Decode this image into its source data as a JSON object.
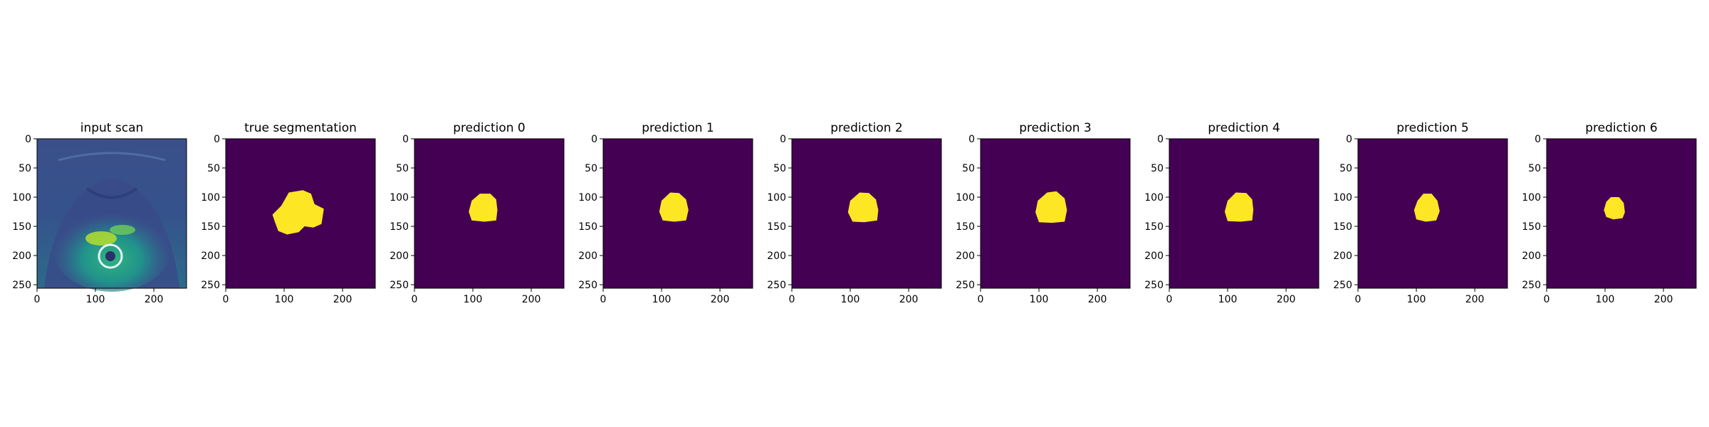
{
  "figure": {
    "colors": {
      "background": "#440154",
      "foreground": "#fde725"
    }
  },
  "chart_data": [
    {
      "type": "heatmap",
      "title": "input scan",
      "image": "mri-scan",
      "xticks": [
        0,
        100,
        200
      ],
      "yticks": [
        0,
        50,
        100,
        150,
        200,
        250
      ],
      "xlim": [
        0,
        256
      ],
      "ylim": [
        256,
        0
      ]
    },
    {
      "type": "heatmap",
      "title": "true segmentation",
      "image": "mask",
      "xticks": [
        0,
        100,
        200
      ],
      "yticks": [
        0,
        50,
        100,
        150,
        200,
        250
      ],
      "xlim": [
        0,
        256
      ],
      "ylim": [
        256,
        0
      ],
      "mask_outline": [
        [
          108,
          92
        ],
        [
          132,
          88
        ],
        [
          146,
          94
        ],
        [
          152,
          112
        ],
        [
          168,
          120
        ],
        [
          164,
          146
        ],
        [
          150,
          152
        ],
        [
          135,
          150
        ],
        [
          125,
          160
        ],
        [
          105,
          164
        ],
        [
          90,
          158
        ],
        [
          84,
          142
        ],
        [
          80,
          130
        ],
        [
          95,
          115
        ]
      ]
    },
    {
      "type": "heatmap",
      "title": "prediction 0",
      "image": "mask",
      "xticks": [
        0,
        100,
        200
      ],
      "yticks": [
        0,
        50,
        100,
        150,
        200,
        250
      ],
      "xlim": [
        0,
        256
      ],
      "ylim": [
        256,
        0
      ],
      "mask_outline": [
        [
          112,
          94
        ],
        [
          130,
          94
        ],
        [
          140,
          104
        ],
        [
          142,
          122
        ],
        [
          140,
          140
        ],
        [
          120,
          142
        ],
        [
          98,
          140
        ],
        [
          93,
          125
        ],
        [
          98,
          106
        ]
      ]
    },
    {
      "type": "heatmap",
      "title": "prediction 1",
      "image": "mask",
      "xticks": [
        0,
        100,
        200
      ],
      "yticks": [
        0,
        50,
        100,
        150,
        200,
        250
      ],
      "xlim": [
        0,
        256
      ],
      "ylim": [
        256,
        0
      ],
      "mask_outline": [
        [
          115,
          92
        ],
        [
          130,
          93
        ],
        [
          142,
          104
        ],
        [
          146,
          122
        ],
        [
          142,
          140
        ],
        [
          122,
          142
        ],
        [
          102,
          140
        ],
        [
          96,
          125
        ],
        [
          100,
          106
        ]
      ]
    },
    {
      "type": "heatmap",
      "title": "prediction 2",
      "image": "mask",
      "xticks": [
        0,
        100,
        200
      ],
      "yticks": [
        0,
        50,
        100,
        150,
        200,
        250
      ],
      "xlim": [
        0,
        256
      ],
      "ylim": [
        256,
        0
      ],
      "mask_outline": [
        [
          116,
          92
        ],
        [
          132,
          93
        ],
        [
          144,
          104
        ],
        [
          148,
          122
        ],
        [
          146,
          140
        ],
        [
          124,
          143
        ],
        [
          104,
          142
        ],
        [
          96,
          126
        ],
        [
          100,
          106
        ]
      ]
    },
    {
      "type": "heatmap",
      "title": "prediction 3",
      "image": "mask",
      "xticks": [
        0,
        100,
        200
      ],
      "yticks": [
        0,
        50,
        100,
        150,
        200,
        250
      ],
      "xlim": [
        0,
        256
      ],
      "ylim": [
        256,
        0
      ],
      "mask_outline": [
        [
          114,
          92
        ],
        [
          130,
          90
        ],
        [
          144,
          102
        ],
        [
          148,
          122
        ],
        [
          144,
          142
        ],
        [
          122,
          144
        ],
        [
          100,
          143
        ],
        [
          94,
          126
        ],
        [
          98,
          106
        ]
      ]
    },
    {
      "type": "heatmap",
      "title": "prediction 4",
      "image": "mask",
      "xticks": [
        0,
        100,
        200
      ],
      "yticks": [
        0,
        50,
        100,
        150,
        200,
        250
      ],
      "xlim": [
        0,
        256
      ],
      "ylim": [
        256,
        0
      ],
      "mask_outline": [
        [
          114,
          92
        ],
        [
          132,
          93
        ],
        [
          142,
          104
        ],
        [
          144,
          122
        ],
        [
          142,
          140
        ],
        [
          122,
          142
        ],
        [
          100,
          141
        ],
        [
          95,
          125
        ],
        [
          100,
          106
        ]
      ]
    },
    {
      "type": "heatmap",
      "title": "prediction 5",
      "image": "mask",
      "xticks": [
        0,
        100,
        200
      ],
      "yticks": [
        0,
        50,
        100,
        150,
        200,
        250
      ],
      "xlim": [
        0,
        256
      ],
      "ylim": [
        256,
        0
      ],
      "mask_outline": [
        [
          112,
          94
        ],
        [
          126,
          94
        ],
        [
          136,
          106
        ],
        [
          140,
          124
        ],
        [
          134,
          140
        ],
        [
          116,
          142
        ],
        [
          100,
          138
        ],
        [
          96,
          122
        ],
        [
          102,
          106
        ]
      ]
    },
    {
      "type": "heatmap",
      "title": "prediction 6",
      "image": "mask",
      "xticks": [
        0,
        100,
        200
      ],
      "yticks": [
        0,
        50,
        100,
        150,
        200,
        250
      ],
      "xlim": [
        0,
        256
      ],
      "ylim": [
        256,
        0
      ],
      "mask_outline": [
        [
          110,
          100
        ],
        [
          124,
          100
        ],
        [
          132,
          110
        ],
        [
          134,
          126
        ],
        [
          130,
          136
        ],
        [
          114,
          138
        ],
        [
          102,
          134
        ],
        [
          98,
          122
        ],
        [
          102,
          108
        ]
      ]
    }
  ]
}
